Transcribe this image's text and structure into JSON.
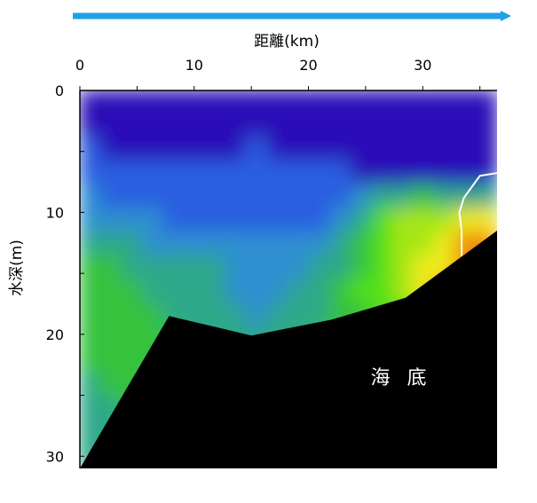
{
  "chart_data": {
    "type": "heatmap",
    "title": "",
    "xlabel": "距離(km)",
    "ylabel": "水深(m)",
    "xlim": [
      0,
      36.5
    ],
    "ylim": [
      0,
      31
    ],
    "x_axis_position": "top",
    "y_axis_inverted": true,
    "x_ticks": [
      0,
      10,
      20,
      30
    ],
    "y_ticks": [
      0,
      10,
      20,
      30
    ],
    "direction_arrow": "left-to-right",
    "colormap": [
      "#2b10b8",
      "#2a5fe0",
      "#2f8fd0",
      "#2ea88a",
      "#34c23e",
      "#52e012",
      "#a4e614",
      "#f0ec1a",
      "#f08c10",
      "#e03a00"
    ],
    "grid": [
      [
        0,
        0,
        0,
        0,
        0,
        0,
        0,
        0,
        0,
        0,
        0,
        0,
        0,
        0,
        0,
        0,
        0,
        0,
        0,
        0
      ],
      [
        0,
        0,
        0,
        0,
        0,
        0,
        0,
        0,
        0,
        0,
        0,
        0,
        0,
        0,
        0,
        0,
        0,
        0,
        0,
        0
      ],
      [
        1,
        0,
        0,
        0,
        0,
        0,
        0,
        0,
        1,
        0,
        0,
        0,
        0,
        0,
        0,
        0,
        0,
        0,
        0,
        0
      ],
      [
        1,
        1,
        1,
        1,
        1,
        1,
        1,
        1,
        1,
        1,
        1,
        1,
        1,
        0,
        0,
        0,
        0,
        0,
        0,
        0
      ],
      [
        2,
        1,
        1,
        1,
        1,
        1,
        1,
        1,
        1,
        1,
        1,
        1,
        1,
        2,
        3,
        3,
        4,
        3,
        3,
        3
      ],
      [
        2,
        2,
        2,
        2,
        1,
        1,
        1,
        1,
        1,
        1,
        1,
        1,
        2,
        3,
        5,
        6,
        6,
        6,
        7,
        7
      ],
      [
        3,
        3,
        3,
        2,
        2,
        2,
        2,
        2,
        2,
        2,
        2,
        2,
        3,
        4,
        5,
        6,
        6,
        7,
        8,
        8
      ],
      [
        4,
        4,
        3,
        3,
        3,
        3,
        3,
        2,
        2,
        2,
        2,
        3,
        3,
        4,
        5,
        6,
        7,
        7,
        8,
        9
      ],
      [
        4,
        4,
        4,
        3,
        3,
        3,
        3,
        2,
        2,
        2,
        3,
        3,
        4,
        5,
        5,
        6,
        7,
        8,
        9,
        9
      ],
      [
        4,
        4,
        4,
        4,
        3,
        3,
        3,
        3,
        2,
        3,
        3,
        3,
        4,
        4,
        5,
        5,
        6,
        8,
        9,
        9
      ],
      [
        4,
        4,
        4,
        4,
        4,
        3,
        3,
        3,
        3,
        3,
        3,
        4,
        4,
        4,
        5,
        5,
        6,
        7,
        8,
        8
      ],
      [
        4,
        4,
        4,
        4,
        4,
        4,
        3,
        3,
        3,
        3,
        4,
        4,
        4,
        5,
        5,
        5,
        6,
        7,
        7,
        7
      ],
      [
        3,
        4,
        4,
        4,
        4,
        4,
        4,
        3,
        3,
        3,
        4,
        4,
        5,
        5,
        5,
        5,
        6,
        6,
        6,
        6
      ],
      [
        3,
        3,
        4,
        4,
        4,
        4,
        4,
        4,
        3,
        3,
        4,
        4,
        5,
        5,
        5,
        5,
        5,
        5,
        5,
        5
      ],
      [
        3,
        3,
        3,
        4,
        4,
        4,
        4,
        4,
        3,
        3,
        4,
        4,
        4,
        5,
        5,
        5,
        5,
        5,
        5,
        5
      ],
      [
        3,
        3,
        3,
        3,
        4,
        4,
        4,
        4,
        3,
        3,
        3,
        4,
        4,
        4,
        4,
        4,
        4,
        4,
        4,
        4
      ]
    ],
    "contour_line": [
      [
        37,
        6.7
      ],
      [
        35,
        7
      ],
      [
        33.6,
        8.8
      ],
      [
        33.2,
        10
      ],
      [
        33.4,
        11.5
      ],
      [
        33.4,
        13.6
      ]
    ],
    "seafloor": [
      [
        0,
        31
      ],
      [
        7.8,
        18.5
      ],
      [
        15,
        20.1
      ],
      [
        22,
        18.8
      ],
      [
        28.5,
        17
      ],
      [
        36.5,
        11.5
      ]
    ],
    "annotation": "海 底"
  }
}
